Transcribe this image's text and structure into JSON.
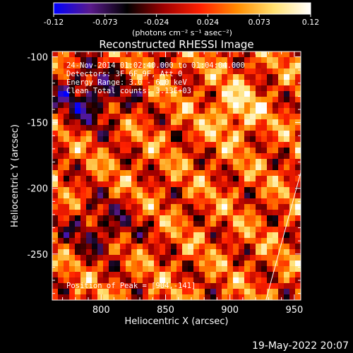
{
  "chart_data": {
    "type": "heatmap",
    "title": "Reconstructed RHESSI Image",
    "xlabel": "Heliocentric X (arcsec)",
    "ylabel": "Heliocentric Y (arcsec)",
    "xlim": [
      762,
      955
    ],
    "ylim": [
      -285,
      -96
    ],
    "x_ticks": [
      800,
      850,
      900,
      950
    ],
    "y_ticks": [
      -100,
      -150,
      -200,
      -250
    ],
    "colorbar": {
      "range": [
        -0.12,
        0.12
      ],
      "ticks": [
        "-0.12",
        "-0.073",
        "-0.024",
        "0.024",
        "0.073",
        "0.12"
      ],
      "label": "(photons cm⁻² s⁻¹ asec⁻²)",
      "colors": [
        "#0000ff",
        "#5a1a8c",
        "#000000",
        "#a00000",
        "#ff2000",
        "#ff8c00",
        "#ffe070",
        "#ffffff"
      ]
    },
    "annotations": [
      "24-Nov-2014 01:02:40.000 to 01:04:04.000",
      "Detectors: 3F 6F 9F, Att 0",
      "Energy Range: 3.0 - 6.0 keV",
      "Clean    Total counts: 3.13E+03"
    ],
    "peak_label": "Position of Peak = [904,-141]",
    "peak": [
      904,
      -141
    ],
    "limb_line": [
      [
        928,
        -285
      ],
      [
        955,
        -188
      ]
    ]
  },
  "footer": {
    "date": "19-May-2022 20:07"
  }
}
